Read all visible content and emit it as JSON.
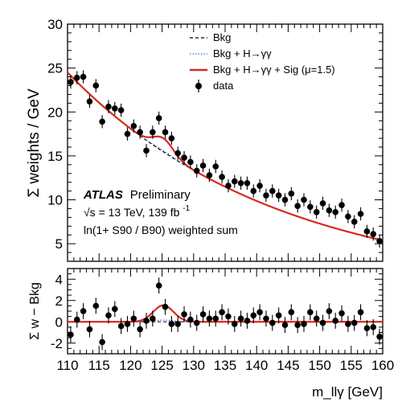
{
  "chart_data": [
    {
      "type": "scatter",
      "panel": "main",
      "ylabel": "Σ weights / GeV",
      "xlim": [
        110,
        160
      ],
      "ylim": [
        3,
        30
      ],
      "yticks": [
        5,
        10,
        15,
        20,
        25,
        30
      ],
      "legend": {
        "placement": "top-right",
        "entries": [
          {
            "label": "Bkg",
            "style": "dashed",
            "color": "#000000"
          },
          {
            "label": "Bkg + H→γγ",
            "style": "dotted",
            "color": "#3a6fd8"
          },
          {
            "label": "Bkg + H→γγ + Sig (μ=1.5)",
            "style": "solid",
            "color": "#d62a1e"
          },
          {
            "label": "data",
            "style": "marker",
            "color": "#000000"
          }
        ]
      },
      "annotations": {
        "atlas": "ATLAS",
        "atlas_suffix": "Preliminary",
        "energy": "√s = 13 TeV, 139 fb",
        "lumi_exp": "-1",
        "weighting": "ln(1+ S90 / B90) weighted sum"
      },
      "data_points": {
        "x": [
          110.5,
          111.5,
          112.5,
          113.5,
          114.5,
          115.5,
          116.5,
          117.5,
          118.5,
          119.5,
          120.5,
          121.5,
          122.5,
          123.5,
          124.5,
          125.5,
          126.5,
          127.5,
          128.5,
          129.5,
          130.5,
          131.5,
          132.5,
          133.5,
          134.5,
          135.5,
          136.5,
          137.5,
          138.5,
          139.5,
          140.5,
          141.5,
          142.5,
          143.5,
          144.5,
          145.5,
          146.5,
          147.5,
          148.5,
          149.5,
          150.5,
          151.5,
          152.5,
          153.5,
          154.5,
          155.5,
          156.5,
          157.5,
          158.5,
          159.5
        ],
        "y": [
          23.4,
          23.9,
          24.0,
          21.2,
          23.0,
          18.9,
          20.6,
          20.4,
          20.2,
          17.5,
          18.4,
          17.7,
          15.6,
          17.7,
          19.3,
          17.7,
          17.0,
          15.3,
          14.8,
          14.3,
          13.3,
          13.9,
          12.8,
          13.8,
          12.6,
          11.6,
          12.1,
          11.9,
          11.9,
          11.0,
          11.6,
          10.5,
          11.0,
          10.5,
          10.0,
          10.7,
          9.3,
          10.0,
          9.2,
          8.6,
          9.6,
          8.8,
          8.6,
          9.4,
          8.1,
          7.5,
          8.4,
          6.4,
          6.1,
          5.3
        ],
        "yerr": 0.75
      },
      "background_fit": {
        "formula": "exp(3.2 - 0.0303*(m-110))",
        "A": 24.5,
        "k": 0.0303
      },
      "signal": {
        "mass": 125.2,
        "sigma": 1.6,
        "amplitude": 1.55,
        "mu": 1.5
      }
    },
    {
      "type": "scatter",
      "panel": "residual",
      "xlabel": "m_llγ [GeV]",
      "ylabel": "Σ w − Bkg",
      "xlim": [
        110,
        160
      ],
      "ylim": [
        -3,
        5
      ],
      "xticks": [
        110,
        115,
        120,
        125,
        130,
        135,
        140,
        145,
        150,
        155,
        160
      ],
      "yticks": [
        -2,
        0,
        2,
        4
      ],
      "data_points": {
        "x": [
          110.5,
          111.5,
          112.5,
          113.5,
          114.5,
          115.5,
          116.5,
          117.5,
          118.5,
          119.5,
          120.5,
          121.5,
          122.5,
          123.5,
          124.5,
          125.5,
          126.5,
          127.5,
          128.5,
          129.5,
          130.5,
          131.5,
          132.5,
          133.5,
          134.5,
          135.5,
          136.5,
          137.5,
          138.5,
          139.5,
          140.5,
          141.5,
          142.5,
          143.5,
          144.5,
          145.5,
          146.5,
          147.5,
          148.5,
          149.5,
          150.5,
          151.5,
          152.5,
          153.5,
          154.5,
          155.5,
          156.5,
          157.5,
          158.5,
          159.5
        ],
        "y": [
          -1.2,
          0.2,
          1.0,
          -0.7,
          1.5,
          -1.9,
          0.6,
          1.2,
          -0.4,
          -0.2,
          0.3,
          -0.7,
          0.1,
          0.3,
          3.4,
          1.4,
          -0.2,
          -0.2,
          0.7,
          0.2,
          -0.1,
          0.7,
          0.3,
          0.3,
          0.9,
          0.5,
          -0.2,
          0.3,
          0.1,
          0.6,
          0.9,
          0.3,
          -0.1,
          0.6,
          -0.3,
          0.9,
          -0.3,
          -0.2,
          0.9,
          0.3,
          -0.1,
          1.0,
          0.1,
          0.8,
          -0.2,
          -0.1,
          0.9,
          -0.6,
          -0.5,
          -1.4
        ],
        "yerr": 0.75
      }
    }
  ]
}
